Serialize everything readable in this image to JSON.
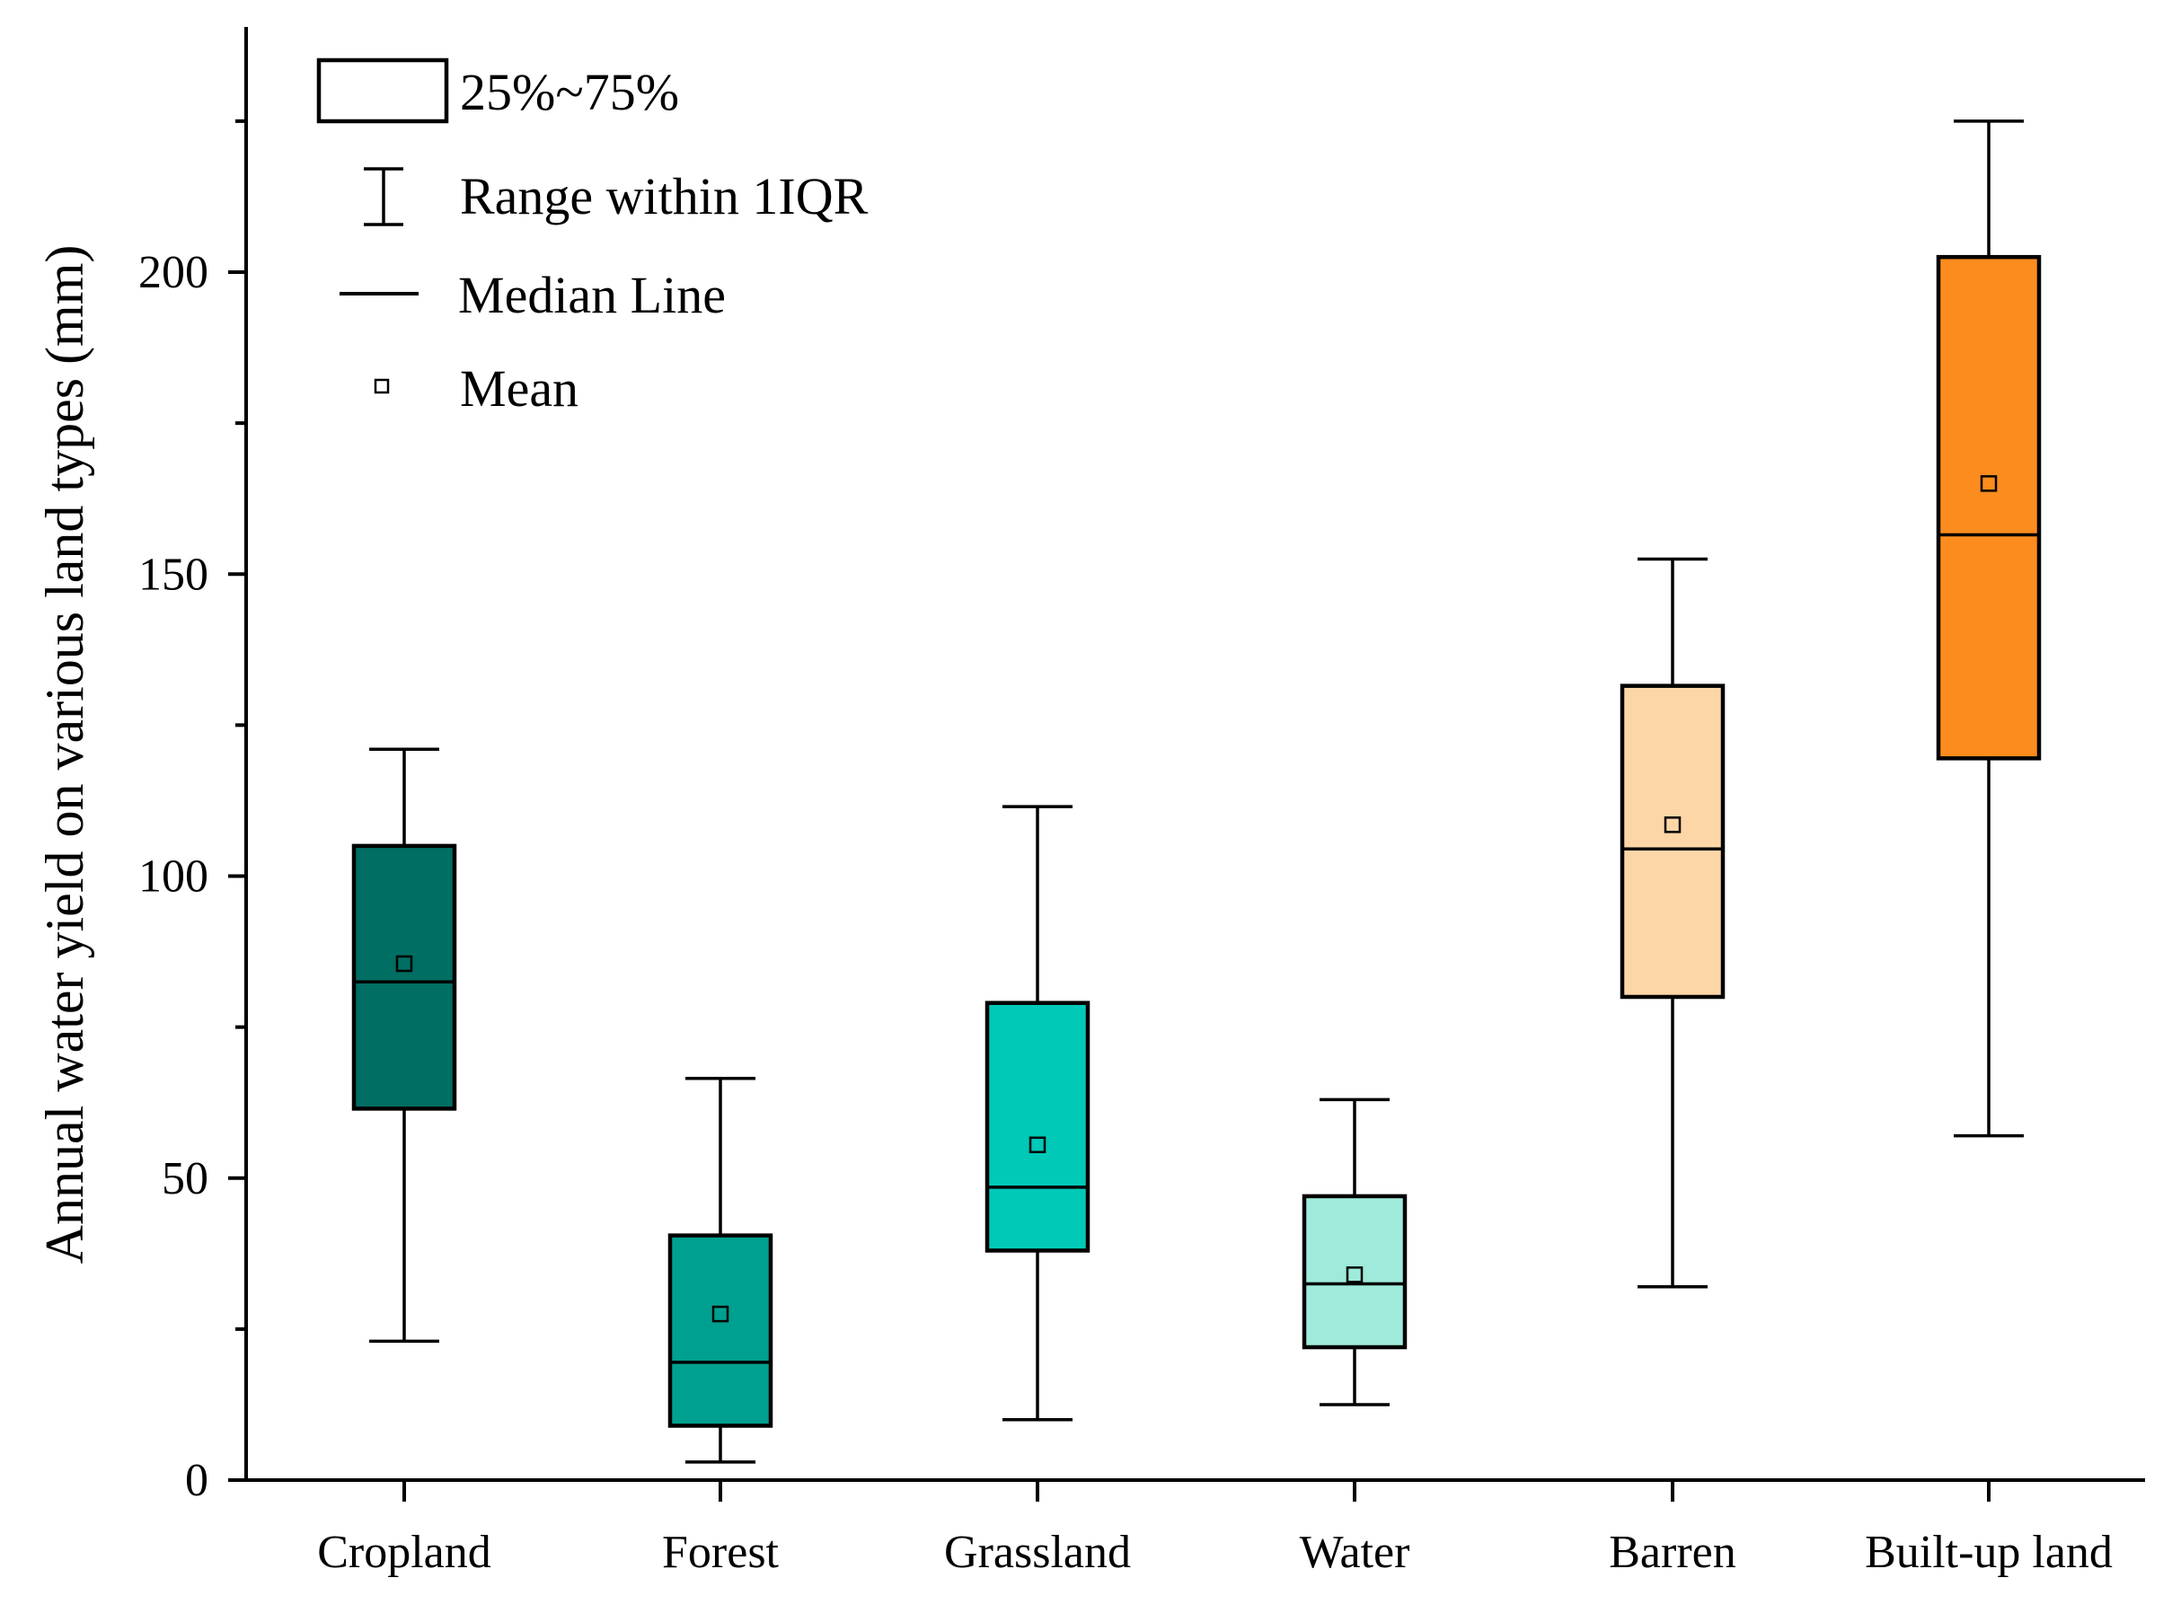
{
  "chart_data": {
    "type": "box",
    "ylabel": "Annual water yield on various land types (mm)",
    "xlabel": "",
    "ylim": [
      0,
      240
    ],
    "yticks": [
      0,
      50,
      100,
      150,
      200
    ],
    "categories": [
      "Cropland",
      "Forest",
      "Grassland",
      "Water",
      "Barren",
      "Built-up land"
    ],
    "boxes": [
      {
        "name": "Cropland",
        "min": 23,
        "q1": 61.5,
        "median": 82.5,
        "q3": 105,
        "max": 121,
        "mean": 85.5,
        "color": "#006e62"
      },
      {
        "name": "Forest",
        "min": 3,
        "q1": 9,
        "median": 19.5,
        "q3": 40.5,
        "max": 66.5,
        "mean": 27.5,
        "color": "#00a090"
      },
      {
        "name": "Grassland",
        "min": 10,
        "q1": 38,
        "median": 48.5,
        "q3": 79,
        "max": 111.5,
        "mean": 55.5,
        "color": "#00c9b8"
      },
      {
        "name": "Water",
        "min": 12.5,
        "q1": 22,
        "median": 32.5,
        "q3": 47,
        "max": 63,
        "mean": 34,
        "color": "#9feada"
      },
      {
        "name": "Barren",
        "min": 32,
        "q1": 80,
        "median": 104.5,
        "q3": 131.5,
        "max": 152.5,
        "mean": 108.5,
        "color": "#fdd6a8"
      },
      {
        "name": "Built-up land",
        "min": 57,
        "q1": 119.5,
        "median": 156.5,
        "q3": 202.5,
        "max": 225,
        "mean": 165,
        "color": "#fc8c1e"
      }
    ],
    "legend": {
      "position": "top-left",
      "items": [
        {
          "symbol": "box",
          "label": "25%~75%"
        },
        {
          "symbol": "whisker",
          "label": "Range within 1IQR"
        },
        {
          "symbol": "line",
          "label": "Median Line"
        },
        {
          "symbol": "square",
          "label": "Mean"
        }
      ]
    }
  }
}
